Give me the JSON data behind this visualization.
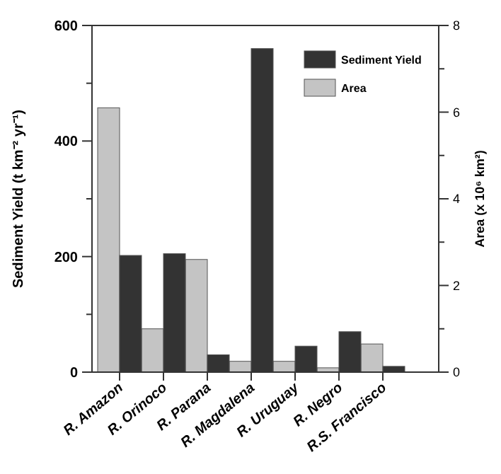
{
  "chart_data": {
    "type": "bar",
    "categories": [
      "R. Amazon",
      "R. Orinoco",
      "R. Parana",
      "R. Magdalena",
      "R. Uruguay",
      "R. Negro",
      "R.S. Francisco"
    ],
    "series": [
      {
        "name": "Area",
        "color": "#c4c4c4",
        "axis": "y2",
        "values": [
          6.1,
          1.0,
          2.6,
          0.25,
          0.25,
          0.1,
          0.65
        ]
      },
      {
        "name": "Sediment Yield",
        "color": "#333333",
        "values": [
          202,
          205,
          30,
          560,
          45,
          70,
          10
        ]
      }
    ],
    "ylabel": "Sediment Yield (t km⁻² yr⁻¹)",
    "y2label": "Area (x 10⁶ km²)",
    "ylim": [
      0,
      600
    ],
    "yticks": [
      0,
      {
        "value": 100,
        "label": null
      },
      200,
      {
        "value": 300,
        "label": null
      },
      400,
      {
        "value": 500,
        "label": null
      },
      600
    ],
    "y2lim": [
      0,
      8
    ],
    "y2ticks": [
      0,
      {
        "value": 1,
        "label": null
      },
      2,
      {
        "value": 3,
        "label": null
      },
      4,
      {
        "value": 5,
        "label": null
      },
      6,
      {
        "value": 7,
        "label": null
      },
      8
    ],
    "legend": "top right"
  }
}
